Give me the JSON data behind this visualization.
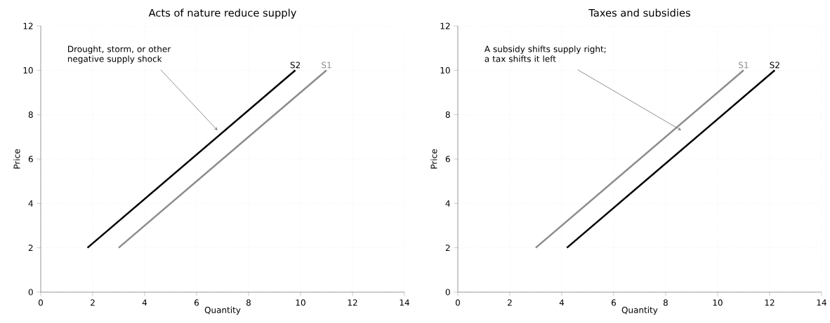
{
  "chart_data": [
    {
      "type": "line",
      "title": "Acts of nature reduce supply",
      "xlabel": "Quantity",
      "ylabel": "Price",
      "xlim": [
        0,
        14
      ],
      "ylim": [
        0,
        12
      ],
      "xticks": [
        0,
        2,
        4,
        6,
        8,
        10,
        12,
        14
      ],
      "yticks": [
        0,
        2,
        4,
        6,
        8,
        10,
        12
      ],
      "grid": true,
      "annotations": [
        "Drought, storm, or other\nnegative supply shock"
      ],
      "series": [
        {
          "name": "S1",
          "color": "#8c8c8c",
          "x": [
            3,
            11
          ],
          "values": [
            2,
            10
          ]
        },
        {
          "name": "S2",
          "color": "#000000",
          "x": [
            1.8,
            9.8
          ],
          "values": [
            2,
            10
          ]
        }
      ]
    },
    {
      "type": "line",
      "title": "Taxes and subsidies",
      "xlabel": "Quantity",
      "ylabel": "Price",
      "xlim": [
        0,
        14
      ],
      "ylim": [
        0,
        12
      ],
      "xticks": [
        0,
        2,
        4,
        6,
        8,
        10,
        12,
        14
      ],
      "yticks": [
        0,
        2,
        4,
        6,
        8,
        10,
        12
      ],
      "grid": true,
      "annotations": [
        "A subsidy shifts supply right;\na tax shifts it left"
      ],
      "series": [
        {
          "name": "S1",
          "color": "#8c8c8c",
          "x": [
            3,
            11
          ],
          "values": [
            2,
            10
          ]
        },
        {
          "name": "S2",
          "color": "#000000",
          "x": [
            4.2,
            12.2
          ],
          "values": [
            2,
            10
          ]
        }
      ]
    }
  ]
}
